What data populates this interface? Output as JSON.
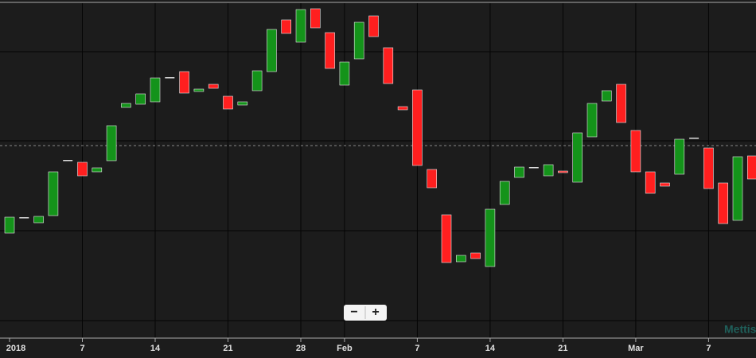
{
  "chart_data": {
    "type": "candlestick",
    "categories": [
      "2018",
      null,
      null,
      null,
      null,
      "7",
      null,
      null,
      null,
      null,
      "14",
      null,
      null,
      null,
      null,
      "21",
      null,
      null,
      null,
      null,
      "28",
      null,
      null,
      "Feb",
      null,
      null,
      null,
      null,
      "7",
      null,
      null,
      null,
      null,
      "14",
      null,
      null,
      null,
      null,
      "21",
      null,
      null,
      null,
      null,
      "Mar",
      null,
      null,
      null,
      null,
      "7",
      null,
      null,
      null
    ],
    "open": [
      137,
      157,
      150,
      159,
      229,
      226,
      214,
      228,
      295,
      299,
      302,
      333,
      340,
      315,
      324,
      309,
      298,
      316,
      340,
      405,
      377,
      419,
      389,
      323,
      356,
      410,
      370,
      296,
      317,
      217,
      160,
      101,
      112,
      95,
      173,
      207,
      220,
      209,
      215,
      201,
      258,
      303,
      324,
      266,
      214,
      200,
      211,
      257,
      244,
      200,
      153,
      234
    ],
    "close": [
      157,
      157,
      158,
      214,
      229,
      209,
      219,
      272,
      300,
      312,
      332,
      333,
      313,
      318,
      319,
      293,
      302,
      341,
      393,
      388,
      418,
      395,
      344,
      352,
      402,
      384,
      325,
      292,
      222,
      194,
      100,
      109,
      105,
      167,
      202,
      220,
      220,
      223,
      213,
      263,
      300,
      316,
      276,
      214,
      187,
      196,
      255,
      257,
      193,
      149,
      233,
      205
    ],
    "up_color": "#14931a",
    "down_color": "#ff1f1f",
    "flat_color": "#dddddd",
    "ylim": [
      0,
      430
    ],
    "reference_line": 247,
    "grid": true,
    "watermark": "Mettis"
  },
  "zoom_controls": [
    "−",
    "+"
  ]
}
